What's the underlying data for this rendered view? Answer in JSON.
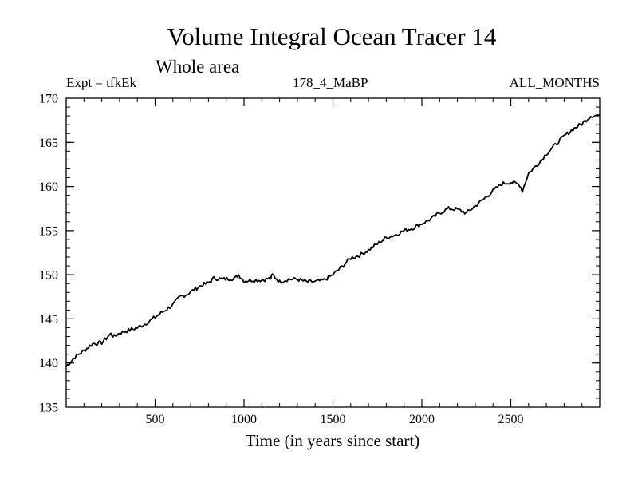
{
  "chart_data": {
    "type": "line",
    "title": "Volume Integral Ocean Tracer 14",
    "subtitle": "Whole area",
    "header_left": "Expt = tfkEk",
    "header_center": "178_4_MaBP",
    "header_right": "ALL_MONTHS",
    "xlabel": "Time (in years since start)",
    "ylabel": "",
    "xlim": [
      0,
      3000
    ],
    "ylim": [
      135,
      170
    ],
    "x_ticks": [
      500,
      1000,
      1500,
      2000,
      2500
    ],
    "x_tick_labels": [
      "500",
      "1000",
      "1500",
      "2000",
      "2500"
    ],
    "y_ticks": [
      135,
      140,
      145,
      150,
      155,
      160,
      165,
      170
    ],
    "y_tick_labels": [
      "135",
      "140",
      "145",
      "150",
      "155",
      "160",
      "165",
      "170"
    ],
    "grid": false,
    "series": [
      {
        "name": "",
        "color": "#000000",
        "x": [
          0,
          50,
          100,
          150,
          200,
          250,
          270,
          300,
          350,
          400,
          450,
          500,
          550,
          600,
          640,
          680,
          750,
          800,
          830,
          880,
          950,
          970,
          1000,
          1050,
          1100,
          1150,
          1160,
          1200,
          1250,
          1300,
          1350,
          1400,
          1450,
          1500,
          1550,
          1600,
          1650,
          1700,
          1750,
          1800,
          1850,
          1900,
          1950,
          2000,
          2050,
          2100,
          2150,
          2200,
          2250,
          2300,
          2350,
          2400,
          2450,
          2500,
          2550,
          2565,
          2600,
          2650,
          2700,
          2750,
          2800,
          2850,
          2900,
          2950,
          3000
        ],
        "y": [
          139.6,
          140.7,
          141.4,
          142.2,
          142.3,
          143.3,
          143.0,
          143.4,
          143.7,
          144.0,
          144.5,
          145.2,
          145.9,
          146.6,
          147.5,
          147.8,
          148.7,
          149.1,
          149.6,
          149.5,
          149.6,
          150.0,
          149.3,
          149.4,
          149.4,
          149.6,
          150.0,
          149.2,
          149.5,
          149.5,
          149.2,
          149.2,
          149.4,
          150.0,
          150.9,
          151.9,
          152.2,
          152.8,
          153.5,
          154.2,
          154.5,
          155.0,
          155.3,
          155.8,
          156.3,
          157.0,
          157.5,
          157.4,
          157.0,
          157.8,
          158.6,
          159.5,
          160.3,
          160.5,
          160.2,
          159.5,
          161.5,
          162.5,
          163.7,
          164.7,
          165.7,
          166.5,
          167.1,
          168.0,
          168.1
        ]
      }
    ]
  }
}
